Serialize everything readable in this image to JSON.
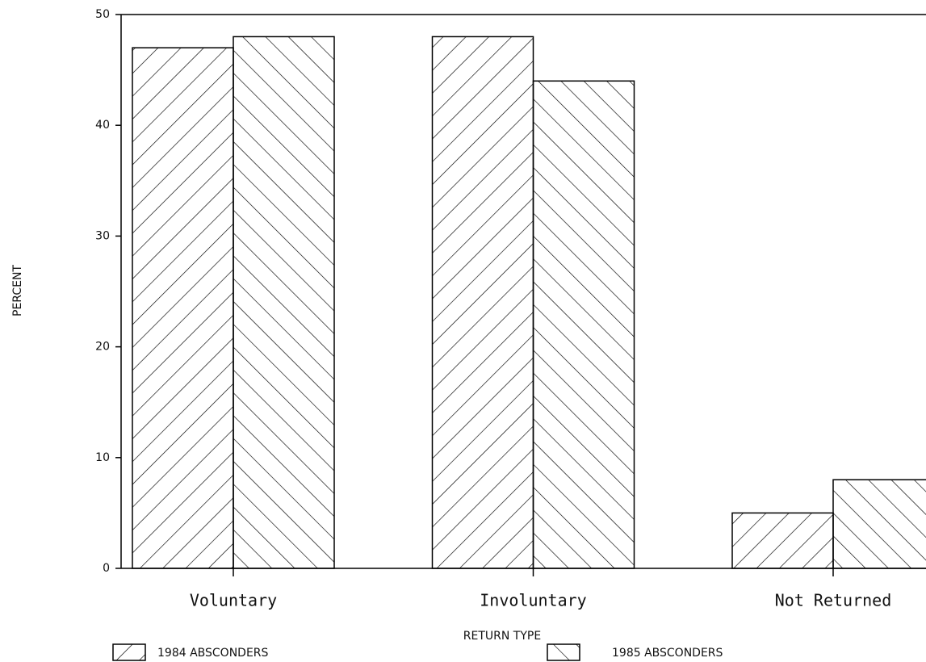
{
  "chart_data": {
    "type": "bar",
    "categories": [
      "Voluntary",
      "Involuntary",
      "Not Returned"
    ],
    "series": [
      {
        "name": "1984 ABSCONDERS",
        "color": "#000000",
        "pattern": "/",
        "values": [
          47,
          48,
          5
        ]
      },
      {
        "name": "1985 ABSCONDERS",
        "color": "#000000",
        "pattern": "\\",
        "values": [
          48,
          44,
          8
        ]
      }
    ],
    "xlabel": "RETURN TYPE",
    "ylabel": "PERCENT",
    "ylim": [
      0,
      50
    ],
    "yticks": [
      0,
      10,
      20,
      30,
      40,
      50
    ],
    "grid": false
  }
}
